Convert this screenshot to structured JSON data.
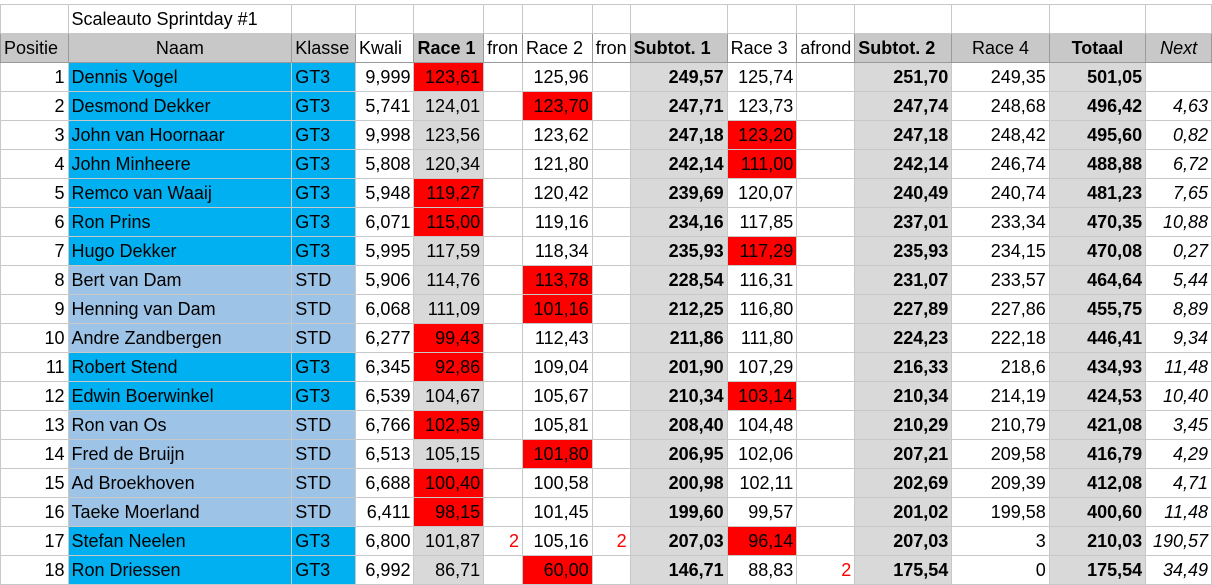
{
  "title": "Scaleauto Sprintday #1",
  "headers": [
    "Positie",
    "Naam",
    "Klasse",
    "Kwali",
    "Race 1",
    "fron",
    "Race 2",
    "fron",
    "Subtot. 1",
    "Race 3",
    "afrond",
    "Subtot. 2",
    "Race 4",
    "Totaal",
    "Next"
  ],
  "rows": [
    {
      "pos": "1",
      "naam": "Dennis Vogel",
      "klasse": "GT3",
      "kwali": "9,999",
      "r1": "123,61",
      "f1": "",
      "r2": "125,96",
      "f2": "",
      "s1": "249,57",
      "r3": "125,74",
      "f3": "",
      "s2": "251,70",
      "r4": "249,35",
      "totaal": "501,05",
      "next": "",
      "red": "r1"
    },
    {
      "pos": "2",
      "naam": "Desmond Dekker",
      "klasse": "GT3",
      "kwali": "5,741",
      "r1": "124,01",
      "f1": "",
      "r2": "123,70",
      "f2": "",
      "s1": "247,71",
      "r3": "123,73",
      "f3": "",
      "s2": "247,74",
      "r4": "248,68",
      "totaal": "496,42",
      "next": "4,63",
      "red": "r2"
    },
    {
      "pos": "3",
      "naam": "John van Hoornaar",
      "klasse": "GT3",
      "kwali": "9,998",
      "r1": "123,56",
      "f1": "",
      "r2": "123,62",
      "f2": "",
      "s1": "247,18",
      "r3": "123,20",
      "f3": "",
      "s2": "247,18",
      "r4": "248,42",
      "totaal": "495,60",
      "next": "0,82",
      "red": "r3"
    },
    {
      "pos": "4",
      "naam": "John Minheere",
      "klasse": "GT3",
      "kwali": "5,808",
      "r1": "120,34",
      "f1": "",
      "r2": "121,80",
      "f2": "",
      "s1": "242,14",
      "r3": "111,00",
      "f3": "",
      "s2": "242,14",
      "r4": "246,74",
      "totaal": "488,88",
      "next": "6,72",
      "red": "r3"
    },
    {
      "pos": "5",
      "naam": "Remco van Waaij",
      "klasse": "GT3",
      "kwali": "5,948",
      "r1": "119,27",
      "f1": "",
      "r2": "120,42",
      "f2": "",
      "s1": "239,69",
      "r3": "120,07",
      "f3": "",
      "s2": "240,49",
      "r4": "240,74",
      "totaal": "481,23",
      "next": "7,65",
      "red": "r1"
    },
    {
      "pos": "6",
      "naam": "Ron Prins",
      "klasse": "GT3",
      "kwali": "6,071",
      "r1": "115,00",
      "f1": "",
      "r2": "119,16",
      "f2": "",
      "s1": "234,16",
      "r3": "117,85",
      "f3": "",
      "s2": "237,01",
      "r4": "233,34",
      "totaal": "470,35",
      "next": "10,88",
      "red": "r1"
    },
    {
      "pos": "7",
      "naam": "Hugo Dekker",
      "klasse": "GT3",
      "kwali": "5,995",
      "r1": "117,59",
      "f1": "",
      "r2": "118,34",
      "f2": "",
      "s1": "235,93",
      "r3": "117,29",
      "f3": "",
      "s2": "235,93",
      "r4": "234,15",
      "totaal": "470,08",
      "next": "0,27",
      "red": "r3"
    },
    {
      "pos": "8",
      "naam": "Bert van Dam",
      "klasse": "STD",
      "kwali": "5,906",
      "r1": "114,76",
      "f1": "",
      "r2": "113,78",
      "f2": "",
      "s1": "228,54",
      "r3": "116,31",
      "f3": "",
      "s2": "231,07",
      "r4": "233,57",
      "totaal": "464,64",
      "next": "5,44",
      "red": "r2"
    },
    {
      "pos": "9",
      "naam": "Henning van Dam",
      "klasse": "STD",
      "kwali": "6,068",
      "r1": "111,09",
      "f1": "",
      "r2": "101,16",
      "f2": "",
      "s1": "212,25",
      "r3": "116,80",
      "f3": "",
      "s2": "227,89",
      "r4": "227,86",
      "totaal": "455,75",
      "next": "8,89",
      "red": "r2"
    },
    {
      "pos": "10",
      "naam": "Andre Zandbergen",
      "klasse": "STD",
      "kwali": "6,277",
      "r1": "99,43",
      "f1": "",
      "r2": "112,43",
      "f2": "",
      "s1": "211,86",
      "r3": "111,80",
      "f3": "",
      "s2": "224,23",
      "r4": "222,18",
      "totaal": "446,41",
      "next": "9,34",
      "red": "r1"
    },
    {
      "pos": "11",
      "naam": "Robert Stend",
      "klasse": "GT3",
      "kwali": "6,345",
      "r1": "92,86",
      "f1": "",
      "r2": "109,04",
      "f2": "",
      "s1": "201,90",
      "r3": "107,29",
      "f3": "",
      "s2": "216,33",
      "r4": "218,6",
      "totaal": "434,93",
      "next": "11,48",
      "red": "r1"
    },
    {
      "pos": "12",
      "naam": "Edwin Boerwinkel",
      "klasse": "GT3",
      "kwali": "6,539",
      "r1": "104,67",
      "f1": "",
      "r2": "105,67",
      "f2": "",
      "s1": "210,34",
      "r3": "103,14",
      "f3": "",
      "s2": "210,34",
      "r4": "214,19",
      "totaal": "424,53",
      "next": "10,40",
      "red": "r3"
    },
    {
      "pos": "13",
      "naam": "Ron van Os",
      "klasse": "STD",
      "kwali": "6,766",
      "r1": "102,59",
      "f1": "",
      "r2": "105,81",
      "f2": "",
      "s1": "208,40",
      "r3": "104,48",
      "f3": "",
      "s2": "210,29",
      "r4": "210,79",
      "totaal": "421,08",
      "next": "3,45",
      "red": "r1"
    },
    {
      "pos": "14",
      "naam": "Fred de Bruijn",
      "klasse": "STD",
      "kwali": "6,513",
      "r1": "105,15",
      "f1": "",
      "r2": "101,80",
      "f2": "",
      "s1": "206,95",
      "r3": "102,06",
      "f3": "",
      "s2": "207,21",
      "r4": "209,58",
      "totaal": "416,79",
      "next": "4,29",
      "red": "r2"
    },
    {
      "pos": "15",
      "naam": "Ad Broekhoven",
      "klasse": "STD",
      "kwali": "6,688",
      "r1": "100,40",
      "f1": "",
      "r2": "100,58",
      "f2": "",
      "s1": "200,98",
      "r3": "102,11",
      "f3": "",
      "s2": "202,69",
      "r4": "209,39",
      "totaal": "412,08",
      "next": "4,71",
      "red": "r1"
    },
    {
      "pos": "16",
      "naam": "Taeke Moerland",
      "klasse": "STD",
      "kwali": "6,411",
      "r1": "98,15",
      "f1": "",
      "r2": "101,45",
      "f2": "",
      "s1": "199,60",
      "r3": "99,57",
      "f3": "",
      "s2": "201,02",
      "r4": "199,58",
      "totaal": "400,60",
      "next": "11,48",
      "red": "r1"
    },
    {
      "pos": "17",
      "naam": "Stefan Neelen",
      "klasse": "GT3",
      "kwali": "6,800",
      "r1": "101,87",
      "f1": "2",
      "r2": "105,16",
      "f2": "2",
      "s1": "207,03",
      "r3": "96,14",
      "f3": "",
      "s2": "207,03",
      "r4": "3",
      "totaal": "210,03",
      "next": "190,57",
      "red": "r3"
    },
    {
      "pos": "18",
      "naam": "Ron Driessen",
      "klasse": "GT3",
      "kwali": "6,992",
      "r1": "86,71",
      "f1": "",
      "r2": "60,00",
      "f2": "",
      "s1": "146,71",
      "r3": "88,83",
      "f3": "2",
      "s2": "175,54",
      "r4": "0",
      "totaal": "175,54",
      "next": "34,49",
      "red": "r2"
    }
  ]
}
